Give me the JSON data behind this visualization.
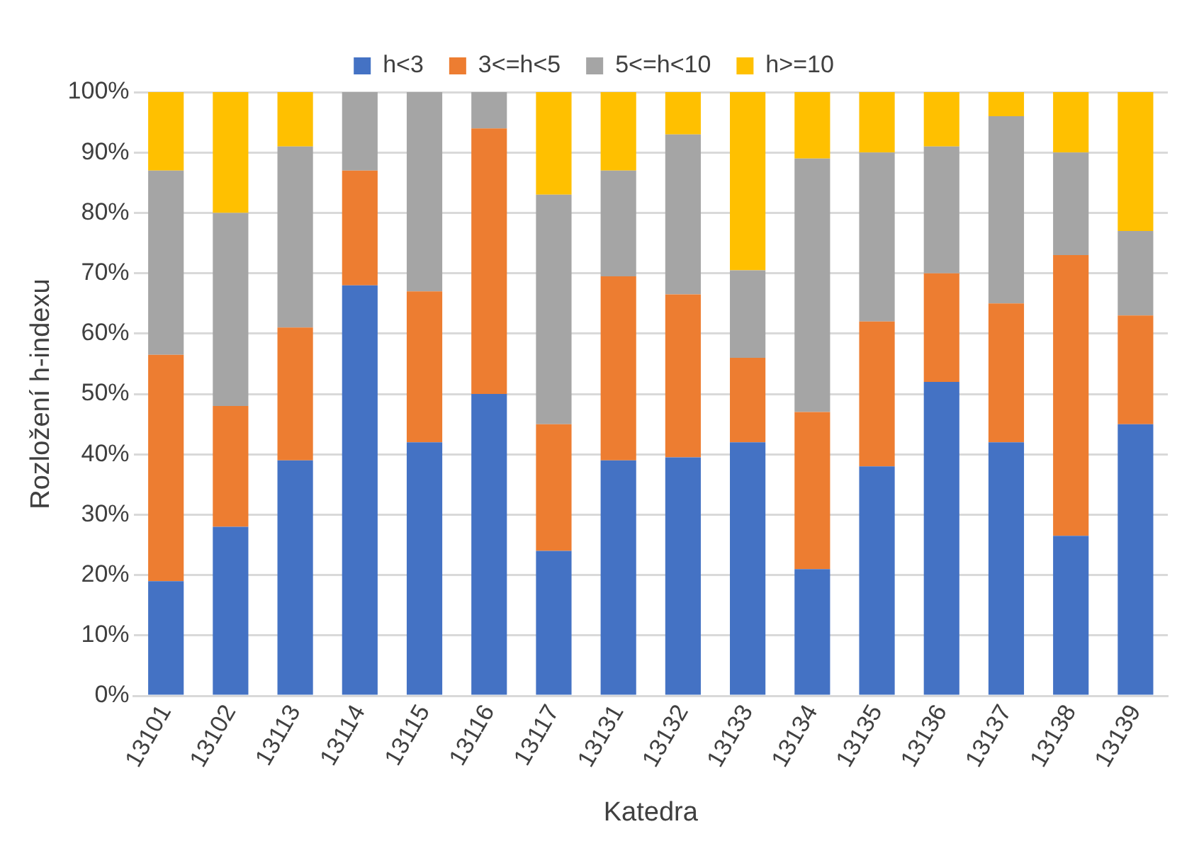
{
  "chart_data": {
    "type": "bar",
    "stacked": true,
    "xlabel": "Katedra",
    "ylabel": "Rozložení h-indexu",
    "categories": [
      "13101",
      "13102",
      "13113",
      "13114",
      "13115",
      "13116",
      "13117",
      "13131",
      "13132",
      "13133",
      "13134",
      "13135",
      "13136",
      "13137",
      "13138",
      "13139"
    ],
    "series": [
      {
        "name": "h<3",
        "color": "#4472c4",
        "values": [
          19,
          28,
          39,
          68,
          42,
          50,
          24,
          39,
          39.5,
          42,
          21,
          38,
          52,
          42,
          26.5,
          45
        ]
      },
      {
        "name": "3<=h<5",
        "color": "#ed7d31",
        "values": [
          37.5,
          20,
          22,
          19,
          25,
          44,
          21,
          30.5,
          27,
          14,
          26,
          24,
          18,
          23,
          46.5,
          18
        ]
      },
      {
        "name": "5<=h<10",
        "color": "#a5a5a5",
        "values": [
          30.5,
          32,
          30,
          13,
          33,
          6,
          38,
          17.5,
          26.5,
          14.5,
          42,
          28,
          21,
          31,
          17,
          14
        ]
      },
      {
        "name": "h>=10",
        "color": "#ffc000",
        "values": [
          13,
          20,
          9,
          0,
          0,
          0,
          17,
          13,
          7,
          29.5,
          11,
          10,
          9,
          4,
          10,
          23
        ]
      }
    ],
    "ylim": [
      0,
      100
    ],
    "yticks": [
      {
        "value": 0,
        "label": "0%"
      },
      {
        "value": 10,
        "label": "10%"
      },
      {
        "value": 20,
        "label": "20%"
      },
      {
        "value": 30,
        "label": "30%"
      },
      {
        "value": 40,
        "label": "40%"
      },
      {
        "value": 50,
        "label": "50%"
      },
      {
        "value": 60,
        "label": "60%"
      },
      {
        "value": 70,
        "label": "70%"
      },
      {
        "value": 80,
        "label": "80%"
      },
      {
        "value": 90,
        "label": "90%"
      },
      {
        "value": 100,
        "label": "100%"
      }
    ],
    "grid": "y",
    "legend": "top"
  }
}
